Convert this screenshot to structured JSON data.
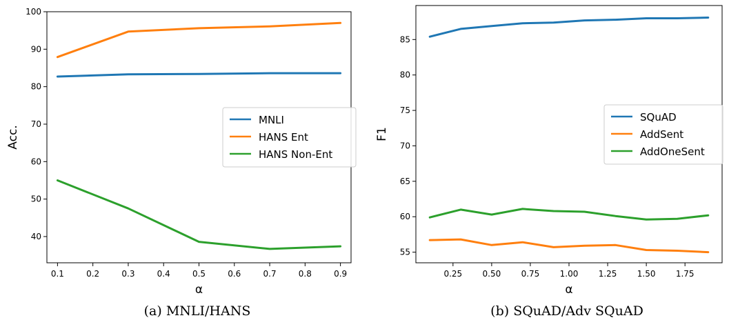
{
  "chart_data": [
    {
      "type": "line",
      "caption": "(a) MNLI/HANS",
      "xlabel": "α",
      "ylabel": "Acc.",
      "x": [
        0.1,
        0.3,
        0.5,
        0.7,
        0.9
      ],
      "xlim": [
        0.07,
        0.93
      ],
      "ylim": [
        33,
        100
      ],
      "xticks": [
        0.1,
        0.2,
        0.3,
        0.4,
        0.5,
        0.6,
        0.7,
        0.8,
        0.9
      ],
      "xtick_labels": [
        "0.1",
        "0.2",
        "0.3",
        "0.4",
        "0.5",
        "0.6",
        "0.7",
        "0.8",
        "0.9"
      ],
      "yticks": [
        40,
        50,
        60,
        70,
        80,
        90,
        100
      ],
      "ytick_labels": [
        "40",
        "50",
        "60",
        "70",
        "80",
        "90",
        "100"
      ],
      "grid": false,
      "legend_position": "center-right",
      "series": [
        {
          "name": "MNLI",
          "color": "#1f77b4",
          "values": [
            82.7,
            83.3,
            83.4,
            83.6,
            83.6
          ]
        },
        {
          "name": "HANS Ent",
          "color": "#ff7f0e",
          "values": [
            87.9,
            94.7,
            95.6,
            96.1,
            97.0
          ]
        },
        {
          "name": "HANS Non-Ent",
          "color": "#2ca02c",
          "values": [
            55.0,
            47.5,
            38.6,
            36.7,
            37.4
          ]
        }
      ]
    },
    {
      "type": "line",
      "caption": "(b) SQuAD/Adv SQuAD",
      "xlabel": "α",
      "ylabel": "F1",
      "x": [
        0.1,
        0.3,
        0.5,
        0.7,
        0.9,
        1.1,
        1.3,
        1.5,
        1.7,
        1.9
      ],
      "xlim": [
        0.01,
        1.99
      ],
      "ylim": [
        53.5,
        89.8
      ],
      "xticks": [
        0.25,
        0.5,
        0.75,
        1.0,
        1.25,
        1.5,
        1.75
      ],
      "xtick_labels": [
        "0.25",
        "0.50",
        "0.75",
        "1.00",
        "1.25",
        "1.50",
        "1.75"
      ],
      "yticks": [
        55,
        60,
        65,
        70,
        75,
        80,
        85
      ],
      "ytick_labels": [
        "55",
        "60",
        "65",
        "70",
        "75",
        "80",
        "85"
      ],
      "grid": false,
      "legend_position": "center-right",
      "series": [
        {
          "name": "SQuAD",
          "color": "#1f77b4",
          "values": [
            85.4,
            86.5,
            86.9,
            87.3,
            87.4,
            87.7,
            87.8,
            88.0,
            88.0,
            88.1
          ]
        },
        {
          "name": "AddSent",
          "color": "#ff7f0e",
          "values": [
            56.7,
            56.8,
            56.0,
            56.4,
            55.7,
            55.9,
            56.0,
            55.3,
            55.2,
            55.0
          ]
        },
        {
          "name": "AddOneSent",
          "color": "#2ca02c",
          "values": [
            59.9,
            61.0,
            60.3,
            61.1,
            60.8,
            60.7,
            60.1,
            59.6,
            59.7,
            60.2
          ]
        }
      ]
    }
  ]
}
